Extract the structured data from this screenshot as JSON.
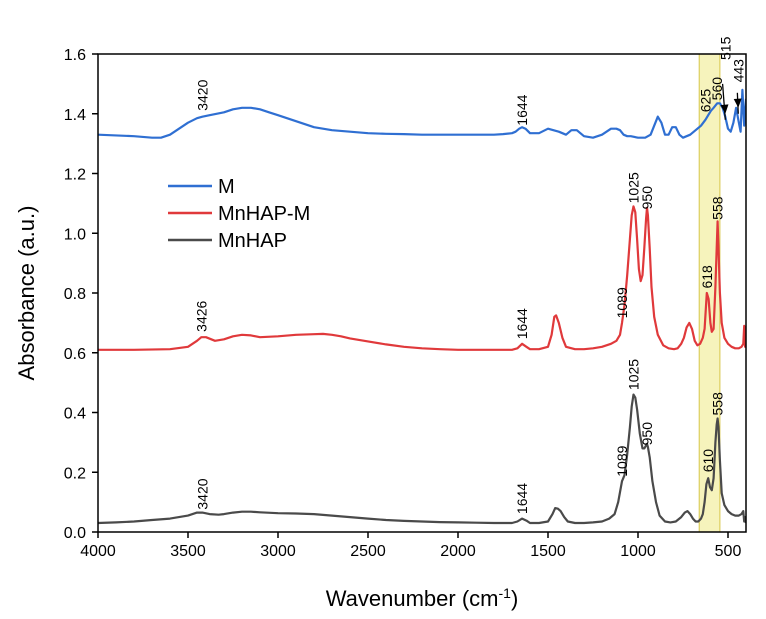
{
  "chart_data": {
    "type": "line",
    "title": "",
    "xlabel": "Wavenumber (cm",
    "xlabel_superscript": "-1",
    "xlabel_suffix": ")",
    "ylabel": "Absorbance (a.u.)",
    "xlim": [
      4000,
      400
    ],
    "ylim": [
      0.0,
      1.6
    ],
    "x_reversed": true,
    "x_ticks": [
      4000,
      3500,
      3000,
      2500,
      2000,
      1500,
      1000,
      500
    ],
    "x_tick_labels": [
      "4000",
      "3500",
      "3000",
      "2500",
      "2000",
      "1500",
      "1000",
      "500"
    ],
    "y_ticks": [
      0.0,
      0.2,
      0.4,
      0.6,
      0.8,
      1.0,
      1.2,
      1.4,
      1.6
    ],
    "y_tick_labels": [
      "0.0",
      "0.2",
      "0.4",
      "0.6",
      "0.8",
      "1.0",
      "1.2",
      "1.4",
      "1.6"
    ],
    "highlight_band": {
      "x_from": 660,
      "x_to": 545,
      "color": "#f3efa6"
    },
    "legend": {
      "placement": "upper-left"
    },
    "series": [
      {
        "name": "M",
        "color": "#2f6fd2",
        "x": [
          4000,
          3800,
          3700,
          3650,
          3600,
          3550,
          3500,
          3450,
          3420,
          3380,
          3300,
          3250,
          3200,
          3150,
          3100,
          3050,
          3000,
          2950,
          2900,
          2850,
          2800,
          2700,
          2600,
          2500,
          2400,
          2300,
          2200,
          2100,
          2000,
          1900,
          1800,
          1750,
          1700,
          1680,
          1660,
          1644,
          1625,
          1600,
          1550,
          1500,
          1470,
          1440,
          1400,
          1370,
          1340,
          1300,
          1250,
          1200,
          1150,
          1120,
          1100,
          1080,
          1060,
          1040,
          1000,
          960,
          930,
          910,
          890,
          870,
          850,
          830,
          810,
          790,
          770,
          750,
          730,
          710,
          690,
          670,
          650,
          625,
          610,
          595,
          580,
          560,
          545,
          530,
          515,
          500,
          485,
          470,
          455,
          443,
          430,
          420,
          410,
          400
        ],
        "y": [
          1.33,
          1.325,
          1.32,
          1.32,
          1.33,
          1.35,
          1.37,
          1.385,
          1.39,
          1.395,
          1.405,
          1.415,
          1.42,
          1.42,
          1.415,
          1.405,
          1.395,
          1.385,
          1.375,
          1.365,
          1.355,
          1.345,
          1.34,
          1.335,
          1.333,
          1.332,
          1.33,
          1.33,
          1.33,
          1.33,
          1.33,
          1.332,
          1.335,
          1.34,
          1.35,
          1.355,
          1.35,
          1.335,
          1.335,
          1.35,
          1.345,
          1.34,
          1.33,
          1.345,
          1.345,
          1.325,
          1.32,
          1.33,
          1.35,
          1.35,
          1.345,
          1.33,
          1.325,
          1.325,
          1.32,
          1.32,
          1.33,
          1.36,
          1.39,
          1.37,
          1.33,
          1.33,
          1.355,
          1.355,
          1.33,
          1.32,
          1.325,
          1.33,
          1.34,
          1.35,
          1.36,
          1.38,
          1.395,
          1.41,
          1.42,
          1.435,
          1.435,
          1.42,
          1.39,
          1.35,
          1.34,
          1.37,
          1.42,
          1.38,
          1.34,
          1.48,
          1.36,
          1.45
        ]
      },
      {
        "name": "MnHAP-M",
        "color": "#e0393b",
        "x": [
          4000,
          3800,
          3600,
          3500,
          3450,
          3426,
          3400,
          3350,
          3300,
          3250,
          3200,
          3150,
          3100,
          3000,
          2900,
          2800,
          2750,
          2700,
          2650,
          2600,
          2500,
          2400,
          2300,
          2200,
          2100,
          2000,
          1900,
          1800,
          1700,
          1670,
          1644,
          1620,
          1600,
          1550,
          1500,
          1480,
          1465,
          1455,
          1440,
          1420,
          1400,
          1350,
          1300,
          1250,
          1200,
          1150,
          1120,
          1100,
          1089,
          1075,
          1060,
          1045,
          1035,
          1025,
          1015,
          1005,
          995,
          985,
          975,
          965,
          955,
          950,
          945,
          935,
          925,
          910,
          890,
          860,
          830,
          800,
          780,
          760,
          745,
          730,
          715,
          700,
          685,
          670,
          655,
          640,
          630,
          618,
          608,
          598,
          590,
          580,
          570,
          563,
          558,
          553,
          545,
          535,
          520,
          500,
          480,
          460,
          440,
          425,
          415,
          410,
          405,
          400
        ],
        "y": [
          0.61,
          0.61,
          0.612,
          0.62,
          0.64,
          0.652,
          0.652,
          0.64,
          0.645,
          0.655,
          0.66,
          0.658,
          0.652,
          0.655,
          0.66,
          0.662,
          0.663,
          0.66,
          0.655,
          0.648,
          0.638,
          0.628,
          0.62,
          0.615,
          0.612,
          0.61,
          0.61,
          0.61,
          0.61,
          0.615,
          0.63,
          0.62,
          0.612,
          0.612,
          0.62,
          0.66,
          0.72,
          0.725,
          0.7,
          0.65,
          0.62,
          0.612,
          0.612,
          0.615,
          0.62,
          0.63,
          0.64,
          0.66,
          0.7,
          0.76,
          0.86,
          0.98,
          1.06,
          1.09,
          1.07,
          0.98,
          0.88,
          0.84,
          0.86,
          0.95,
          1.05,
          1.085,
          1.06,
          0.95,
          0.82,
          0.72,
          0.66,
          0.625,
          0.615,
          0.612,
          0.615,
          0.63,
          0.65,
          0.685,
          0.7,
          0.68,
          0.64,
          0.625,
          0.63,
          0.65,
          0.68,
          0.8,
          0.78,
          0.7,
          0.67,
          0.68,
          0.82,
          0.95,
          1.04,
          0.95,
          0.8,
          0.7,
          0.65,
          0.63,
          0.62,
          0.615,
          0.615,
          0.62,
          0.63,
          0.69,
          0.62,
          0.69
        ]
      },
      {
        "name": "MnHAP",
        "color": "#4a4a4a",
        "x": [
          4000,
          3900,
          3800,
          3700,
          3600,
          3500,
          3450,
          3420,
          3380,
          3330,
          3300,
          3250,
          3200,
          3150,
          3100,
          3000,
          2900,
          2800,
          2700,
          2600,
          2500,
          2400,
          2300,
          2200,
          2100,
          2000,
          1900,
          1800,
          1700,
          1670,
          1644,
          1620,
          1600,
          1550,
          1500,
          1475,
          1460,
          1445,
          1430,
          1410,
          1390,
          1350,
          1300,
          1250,
          1200,
          1160,
          1130,
          1110,
          1095,
          1089,
          1075,
          1060,
          1045,
          1035,
          1025,
          1015,
          1005,
          990,
          975,
          965,
          955,
          950,
          945,
          935,
          920,
          900,
          880,
          850,
          820,
          790,
          760,
          740,
          725,
          710,
          695,
          680,
          665,
          650,
          640,
          630,
          620,
          610,
          600,
          590,
          580,
          570,
          563,
          558,
          553,
          545,
          535,
          520,
          500,
          480,
          460,
          440,
          425,
          415,
          410,
          405,
          400
        ],
        "y": [
          0.03,
          0.032,
          0.035,
          0.04,
          0.045,
          0.055,
          0.065,
          0.065,
          0.06,
          0.058,
          0.06,
          0.065,
          0.068,
          0.068,
          0.066,
          0.063,
          0.062,
          0.06,
          0.055,
          0.05,
          0.045,
          0.04,
          0.037,
          0.035,
          0.033,
          0.032,
          0.031,
          0.03,
          0.03,
          0.035,
          0.045,
          0.038,
          0.03,
          0.03,
          0.035,
          0.06,
          0.08,
          0.078,
          0.07,
          0.05,
          0.035,
          0.03,
          0.03,
          0.032,
          0.035,
          0.045,
          0.06,
          0.1,
          0.15,
          0.17,
          0.19,
          0.26,
          0.35,
          0.42,
          0.46,
          0.45,
          0.41,
          0.33,
          0.28,
          0.28,
          0.29,
          0.295,
          0.285,
          0.25,
          0.17,
          0.1,
          0.055,
          0.035,
          0.032,
          0.035,
          0.05,
          0.065,
          0.07,
          0.06,
          0.045,
          0.035,
          0.035,
          0.045,
          0.06,
          0.1,
          0.16,
          0.18,
          0.15,
          0.14,
          0.18,
          0.3,
          0.36,
          0.38,
          0.35,
          0.24,
          0.13,
          0.09,
          0.07,
          0.06,
          0.055,
          0.055,
          0.06,
          0.07,
          0.035,
          0.05,
          0.03
        ]
      }
    ],
    "annotations": [
      {
        "text": "3420",
        "x": 3420,
        "y": 1.41,
        "angle": -90
      },
      {
        "text": "1644",
        "x": 1644,
        "y": 1.36,
        "angle": -90
      },
      {
        "text": "625",
        "x": 625,
        "y": 1.405,
        "angle": -90
      },
      {
        "text": "560",
        "x": 560,
        "y": 1.445,
        "angle": -90
      },
      {
        "text": "515",
        "x": 515,
        "y": 1.58,
        "angle": -90
      },
      {
        "text": "443",
        "x": 443,
        "y": 1.505,
        "angle": -90
      },
      {
        "text": "3426",
        "x": 3426,
        "y": 0.67,
        "angle": -90
      },
      {
        "text": "1644",
        "x": 1644,
        "y": 0.645,
        "angle": -90
      },
      {
        "text": "1089",
        "x": 1089,
        "y": 0.715,
        "angle": -90
      },
      {
        "text": "1025",
        "x": 1025,
        "y": 1.1,
        "angle": -90
      },
      {
        "text": "950",
        "x": 950,
        "y": 1.08,
        "angle": -90
      },
      {
        "text": "618",
        "x": 618,
        "y": 0.815,
        "angle": -90
      },
      {
        "text": "558",
        "x": 558,
        "y": 1.045,
        "angle": -90
      },
      {
        "text": "3420",
        "x": 3420,
        "y": 0.075,
        "angle": -90
      },
      {
        "text": "1644",
        "x": 1644,
        "y": 0.06,
        "angle": -90
      },
      {
        "text": "1089",
        "x": 1089,
        "y": 0.185,
        "angle": -90
      },
      {
        "text": "1025",
        "x": 1025,
        "y": 0.475,
        "angle": -90
      },
      {
        "text": "950",
        "x": 950,
        "y": 0.29,
        "angle": -90
      },
      {
        "text": "610",
        "x": 610,
        "y": 0.2,
        "angle": -90
      },
      {
        "text": "558",
        "x": 558,
        "y": 0.39,
        "angle": -90
      }
    ],
    "arrows": [
      {
        "from_x": 530,
        "from_y": 1.5,
        "to_x": 515,
        "to_y": 1.4
      },
      {
        "from_x": 448,
        "from_y": 1.47,
        "to_x": 443,
        "to_y": 1.42
      }
    ]
  }
}
